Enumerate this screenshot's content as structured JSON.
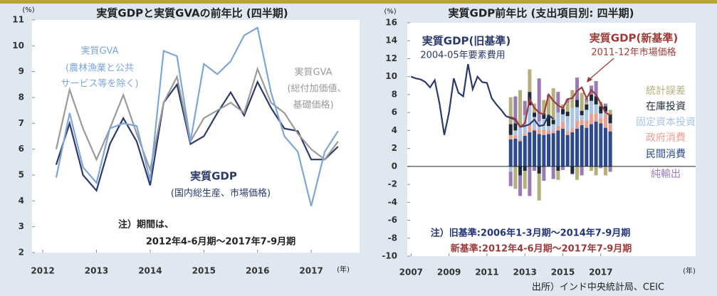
{
  "charts": [
    {
      "chart_data": {
        "type": "line",
        "title": "実質GDPと実質GVAの前年比 (四半期)",
        "y_unit": "(%)",
        "x_unit": "(年)",
        "x": [
          2012.25,
          2012.5,
          2012.75,
          2013.0,
          2013.25,
          2013.5,
          2013.75,
          2014.0,
          2014.25,
          2014.5,
          2014.75,
          2015.0,
          2015.25,
          2015.5,
          2015.75,
          2016.0,
          2016.25,
          2016.5,
          2016.75,
          2017.0,
          2017.25,
          2017.5
        ],
        "xlim": [
          2011.8,
          2017.9
        ],
        "xticks": [
          2012,
          2013,
          2014,
          2015,
          2016,
          2017
        ],
        "ylim": [
          2,
          11
        ],
        "yticks": [
          2,
          3,
          4,
          5,
          6,
          7,
          8,
          9,
          10,
          11
        ],
        "grid": false,
        "series": [
          {
            "name": "実質GDP",
            "note": [
              "(国内総生産、市場価格)"
            ],
            "color": "#2b3a6b",
            "values": [
              5.4,
              7.0,
              5.0,
              4.4,
              6.2,
              7.2,
              6.3,
              4.6,
              7.8,
              8.5,
              6.2,
              6.5,
              7.4,
              8.2,
              7.3,
              8.6,
              7.6,
              6.8,
              6.7,
              5.6,
              5.6,
              6.1
            ]
          },
          {
            "name": "実質GVA",
            "note": [
              "(総付加価値、",
              "基礎価格)"
            ],
            "color": "#9a9a9a",
            "values": [
              6.0,
              8.3,
              6.8,
              5.6,
              6.8,
              8.1,
              6.6,
              5.2,
              7.8,
              8.8,
              6.3,
              7.2,
              7.5,
              7.8,
              7.4,
              9.1,
              7.8,
              7.4,
              6.6,
              6.0,
              5.6,
              6.3
            ]
          },
          {
            "name": "実質GVA",
            "note": [
              "(農林漁業と公共",
              "サービス等を除く)"
            ],
            "color": "#7ea6d8",
            "values": [
              4.9,
              7.4,
              5.3,
              4.7,
              6.8,
              7.0,
              6.9,
              4.8,
              9.8,
              9.6,
              6.3,
              9.3,
              8.9,
              9.4,
              10.4,
              10.7,
              8.2,
              6.5,
              5.9,
              3.8,
              5.9,
              6.7
            ]
          }
        ],
        "notes": [
          "注）期間は、",
          "2012年4-6月期～2017年7-9月期"
        ]
      }
    },
    {
      "chart_data": {
        "type": "combo",
        "title": "実質GDP前年比 (支出項目別: 四半期)",
        "y_unit": "(%)",
        "x_unit": "(年)",
        "xlim": [
          2006.8,
          2022.0
        ],
        "xticks": [
          2007,
          2009,
          2011,
          2013,
          2015,
          2017
        ],
        "ylim": [
          -10,
          16
        ],
        "yticks": [
          -10,
          -8,
          -6,
          -4,
          -2,
          0,
          2,
          4,
          6,
          8,
          10,
          12,
          14,
          16
        ],
        "grid": false,
        "bar_x": [
          2012.25,
          2012.5,
          2012.75,
          2013.0,
          2013.25,
          2013.5,
          2013.75,
          2014.0,
          2014.25,
          2014.5,
          2014.75,
          2015.0,
          2015.25,
          2015.5,
          2015.75,
          2016.0,
          2016.25,
          2016.5,
          2016.75,
          2017.0,
          2017.25,
          2017.5
        ],
        "bar_series": [
          {
            "name": "民間消費",
            "color": "#2c4a8c",
            "values": [
              3.0,
              3.1,
              2.8,
              3.4,
              3.8,
              4.0,
              3.6,
              3.5,
              3.6,
              3.7,
              4.0,
              4.2,
              3.5,
              3.8,
              4.2,
              4.6,
              4.3,
              4.7,
              5.0,
              4.8,
              4.3,
              3.9
            ]
          },
          {
            "name": "政府消費",
            "color": "#e8a090",
            "values": [
              0.5,
              0.4,
              0.2,
              0.3,
              1.0,
              0.2,
              0.5,
              0.6,
              0.4,
              0.3,
              0.5,
              0.8,
              0.4,
              0.5,
              0.9,
              0.6,
              0.8,
              1.2,
              0.9,
              0.6,
              1.5,
              0.8
            ]
          },
          {
            "name": "固定資本投資",
            "color": "#a9c4e4",
            "values": [
              -0.6,
              0.5,
              1.5,
              2.0,
              2.0,
              1.3,
              0.9,
              1.2,
              0.5,
              0.7,
              1.5,
              0.8,
              1.7,
              2.2,
              1.5,
              0.5,
              1.2,
              1.4,
              1.0,
              0.5,
              0.3,
              0.1
            ]
          },
          {
            "name": "在庫投資",
            "color": "#1c2a3c",
            "values": [
              1.2,
              0.8,
              -1.0,
              -0.5,
              1.5,
              0.5,
              -0.8,
              0.6,
              1.2,
              0.5,
              -0.5,
              0.6,
              0.5,
              -0.8,
              0.8,
              0.5,
              0.6,
              0.7,
              0.9,
              0.8,
              0.6,
              1.0
            ]
          },
          {
            "name": "統計誤差",
            "color": "#b5b07a",
            "values": [
              3.0,
              -2.5,
              4.0,
              -2.0,
              2.5,
              1.0,
              -3.0,
              1.5,
              2.0,
              3.5,
              -1.0,
              0.5,
              1.0,
              2.0,
              -1.5,
              2.0,
              0.3,
              -0.5,
              -1.0,
              0.5,
              -1.0,
              0.5
            ]
          },
          {
            "name": "純輸出",
            "color": "#9b7bb5",
            "values": [
              -1.6,
              3.0,
              -2.3,
              1.6,
              -3.3,
              -0.5,
              4.8,
              -1.6,
              0.3,
              -1.4,
              2.3,
              -0.4,
              0.4,
              -0.1,
              2.5,
              -1.0,
              0.4,
              1.0,
              1.7,
              -0.2,
              0.3,
              -0.6
            ]
          }
        ],
        "series": [
          {
            "name": "実質GDP(旧基準)",
            "note": [
              "2004-05年要素費用"
            ],
            "color": "#2b3a6b",
            "x": [
              2007.0,
              2007.25,
              2007.5,
              2007.75,
              2008.0,
              2008.25,
              2008.5,
              2008.75,
              2009.0,
              2009.25,
              2009.5,
              2009.75,
              2010.0,
              2010.25,
              2010.5,
              2010.75,
              2011.0,
              2011.25,
              2011.5,
              2011.75,
              2012.0,
              2012.25,
              2012.5,
              2012.75,
              2013.0,
              2013.25,
              2013.5,
              2013.75,
              2014.0,
              2014.25,
              2014.5
            ],
            "values": [
              10.0,
              9.8,
              9.7,
              9.4,
              8.8,
              9.6,
              7.0,
              3.5,
              6.0,
              9.8,
              8.2,
              7.8,
              11.4,
              8.6,
              10.0,
              9.4,
              9.3,
              7.6,
              6.9,
              6.3,
              5.6,
              5.4,
              5.2,
              4.4,
              4.5,
              4.7,
              5.2,
              4.5,
              4.6,
              5.7,
              5.3
            ]
          },
          {
            "name": "実質GDP(新基準)",
            "note": [
              "2011-12年市場価格"
            ],
            "color": "#a03a3a",
            "x": [
              2012.25,
              2012.5,
              2012.75,
              2013.0,
              2013.25,
              2013.5,
              2013.75,
              2014.0,
              2014.25,
              2014.5,
              2014.75,
              2015.0,
              2015.25,
              2015.5,
              2015.75,
              2016.0,
              2016.25,
              2016.5,
              2016.75,
              2017.0,
              2017.25,
              2017.5
            ],
            "values": [
              5.5,
              5.3,
              4.4,
              4.8,
              7.5,
              6.5,
              6.0,
              5.8,
              8.0,
              7.3,
              6.8,
              6.5,
              7.5,
              7.6,
              8.4,
              8.8,
              7.6,
              8.5,
              8.0,
              7.0,
              6.0,
              5.7
            ]
          }
        ],
        "notes": [
          {
            "text": "注）旧基準:2006年1-3月期～2014年7-9月期",
            "color": "#23357a"
          },
          {
            "text": "新基準:2012年4-6月期～2017年7-9月期",
            "color": "#a03a3a"
          }
        ]
      }
    }
  ],
  "source": "出所）インド中央統計局、CEIC"
}
